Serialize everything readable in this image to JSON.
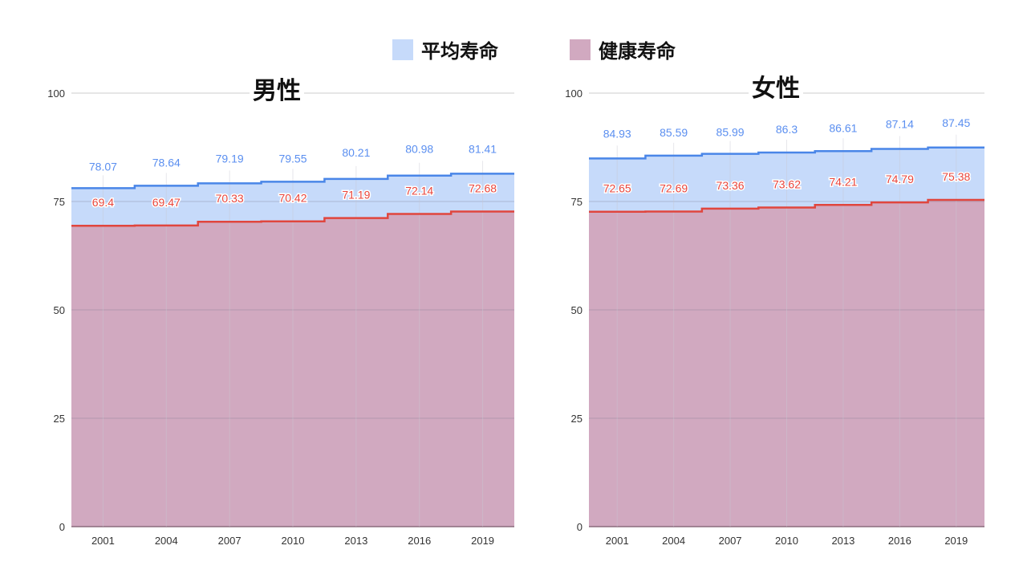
{
  "legend": {
    "items": [
      {
        "label": "平均寿命",
        "color": "#c6dafa"
      },
      {
        "label": "健康寿命",
        "color": "#d1a9c0"
      }
    ]
  },
  "colors": {
    "avg_line": "#4a86e8",
    "avg_fill": "#c6dafa",
    "healthy_line": "#e0463e",
    "healthy_fill": "#d1a9c0",
    "avg_label": "#5b8ff0",
    "healthy_label": "#e8453c",
    "grid": "#cccccc",
    "axis_text": "#333333"
  },
  "charts": [
    {
      "title": "男性"
    },
    {
      "title": "女性"
    }
  ],
  "chart_data": [
    {
      "type": "area",
      "title": "男性",
      "xlabel": "",
      "ylabel": "",
      "ylim": [
        0,
        100
      ],
      "yticks": [
        0,
        25,
        50,
        75,
        100
      ],
      "grid": true,
      "legend_position": "top",
      "categories": [
        "2001",
        "2004",
        "2007",
        "2010",
        "2013",
        "2016",
        "2019"
      ],
      "series": [
        {
          "name": "平均寿命",
          "values": [
            78.07,
            78.64,
            79.19,
            79.55,
            80.21,
            80.98,
            81.41
          ]
        },
        {
          "name": "健康寿命",
          "values": [
            69.4,
            69.47,
            70.33,
            70.42,
            71.19,
            72.14,
            72.68
          ]
        }
      ]
    },
    {
      "type": "area",
      "title": "女性",
      "xlabel": "",
      "ylabel": "",
      "ylim": [
        0,
        100
      ],
      "yticks": [
        0,
        25,
        50,
        75,
        100
      ],
      "grid": true,
      "legend_position": "top",
      "categories": [
        "2001",
        "2004",
        "2007",
        "2010",
        "2013",
        "2016",
        "2019"
      ],
      "series": [
        {
          "name": "平均寿命",
          "values": [
            84.93,
            85.59,
            85.99,
            86.3,
            86.61,
            87.14,
            87.45
          ]
        },
        {
          "name": "健康寿命",
          "values": [
            72.65,
            72.69,
            73.36,
            73.62,
            74.21,
            74.79,
            75.38
          ]
        }
      ]
    }
  ]
}
